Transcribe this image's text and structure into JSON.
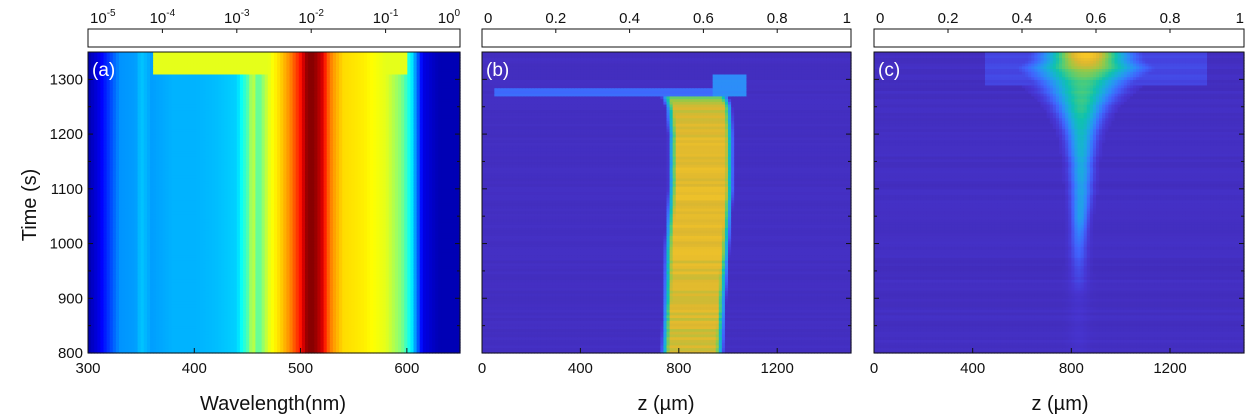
{
  "chart_data": [
    {
      "type": "heatmap",
      "panel_label": "(a)",
      "xlabel": "Wavelength(nm)",
      "ylabel": "Time (s)",
      "xlim": [
        300,
        650
      ],
      "ylim": [
        800,
        1350
      ],
      "xticks": [
        300,
        400,
        500,
        600
      ],
      "yticks": [
        800,
        900,
        1000,
        1100,
        1200,
        1300
      ],
      "colorbar": {
        "scale": "log",
        "range": [
          1e-05,
          1
        ],
        "ticks": [
          {
            "value": 1e-05,
            "base": "10",
            "exp": "-5"
          },
          {
            "value": 0.0001,
            "base": "10",
            "exp": "-4"
          },
          {
            "value": 0.001,
            "base": "10",
            "exp": "-3"
          },
          {
            "value": 0.01,
            "base": "10",
            "exp": "-2"
          },
          {
            "value": 0.1,
            "base": "10",
            "exp": "-1"
          },
          {
            "value": 1,
            "base": "10",
            "exp": "0"
          }
        ],
        "colormap": "jet"
      },
      "profile": {
        "x": [
          300,
          310,
          330,
          345,
          350,
          360,
          380,
          400,
          420,
          440,
          450,
          455,
          460,
          470,
          480,
          490,
          500,
          505,
          510,
          515,
          520,
          525,
          530,
          540,
          560,
          580,
          595,
          605,
          615,
          630,
          650
        ],
        "level": [
          0.04,
          0.1,
          0.27,
          0.28,
          0.32,
          0.28,
          0.3,
          0.3,
          0.31,
          0.33,
          0.45,
          0.58,
          0.45,
          0.6,
          0.66,
          0.74,
          0.86,
          0.97,
          1.0,
          0.97,
          0.92,
          0.8,
          0.73,
          0.66,
          0.64,
          0.6,
          0.5,
          0.35,
          0.1,
          0.05,
          0.05
        ]
      },
      "top_region": {
        "start": 1310,
        "end": 1350,
        "x_range": [
          360,
          600
        ]
      }
    },
    {
      "type": "heatmap",
      "panel_label": "(b)",
      "xlabel": "z (µm)",
      "xlim": [
        0,
        1500
      ],
      "ylim": [
        800,
        1350
      ],
      "xticks": [
        0,
        400,
        800,
        1200
      ],
      "yticks": [
        800,
        900,
        1000,
        1100,
        1200,
        1300
      ],
      "colorbar": {
        "scale": "linear",
        "range": [
          0,
          1
        ],
        "ticks": [
          {
            "value": 0,
            "label": "0"
          },
          {
            "value": 0.2,
            "label": "0.2"
          },
          {
            "value": 0.4,
            "label": "0.4"
          },
          {
            "value": 0.6,
            "label": "0.6"
          },
          {
            "value": 0.8,
            "label": "0.8"
          },
          {
            "value": 1,
            "label": "1"
          }
        ],
        "colormap": "parula"
      },
      "band": {
        "time": [
          800,
          900,
          1000,
          1100,
          1200,
          1250,
          1270
        ],
        "left": [
          760,
          770,
          775,
          790,
          790,
          780,
          760
        ],
        "right": [
          950,
          960,
          975,
          990,
          990,
          985,
          970
        ],
        "peak": [
          0.78,
          0.8,
          0.82,
          0.82,
          0.82,
          0.78,
          0.6
        ]
      },
      "upper_event": {
        "time": [
          1270,
          1310
        ],
        "z_range": [
          980,
          1080
        ],
        "tail_z": 50
      }
    },
    {
      "type": "heatmap",
      "panel_label": "(c)",
      "xlabel": "z (µm)",
      "xlim": [
        0,
        1500
      ],
      "ylim": [
        800,
        1350
      ],
      "xticks": [
        0,
        400,
        800,
        1200
      ],
      "yticks": [
        800,
        900,
        1000,
        1100,
        1200,
        1300
      ],
      "colorbar": {
        "scale": "linear",
        "range": [
          0,
          1
        ],
        "ticks": [
          {
            "value": 0,
            "label": "0"
          },
          {
            "value": 0.2,
            "label": "0.2"
          },
          {
            "value": 0.4,
            "label": "0.4"
          },
          {
            "value": 0.6,
            "label": "0.6"
          },
          {
            "value": 0.8,
            "label": "0.8"
          },
          {
            "value": 1,
            "label": "1"
          }
        ],
        "colormap": "parula"
      },
      "plume": {
        "time": [
          800,
          900,
          1000,
          1050,
          1100,
          1150,
          1200,
          1250,
          1280,
          1300,
          1320,
          1335,
          1350
        ],
        "center": [
          830,
          830,
          830,
          835,
          840,
          840,
          840,
          840,
          845,
          850,
          860,
          860,
          860
        ],
        "half_width": [
          50,
          50,
          40,
          40,
          50,
          55,
          70,
          110,
          160,
          200,
          250,
          200,
          190
        ],
        "peak": [
          0.08,
          0.09,
          0.22,
          0.36,
          0.36,
          0.4,
          0.45,
          0.55,
          0.58,
          0.6,
          0.72,
          0.85,
          0.92
        ]
      }
    }
  ]
}
